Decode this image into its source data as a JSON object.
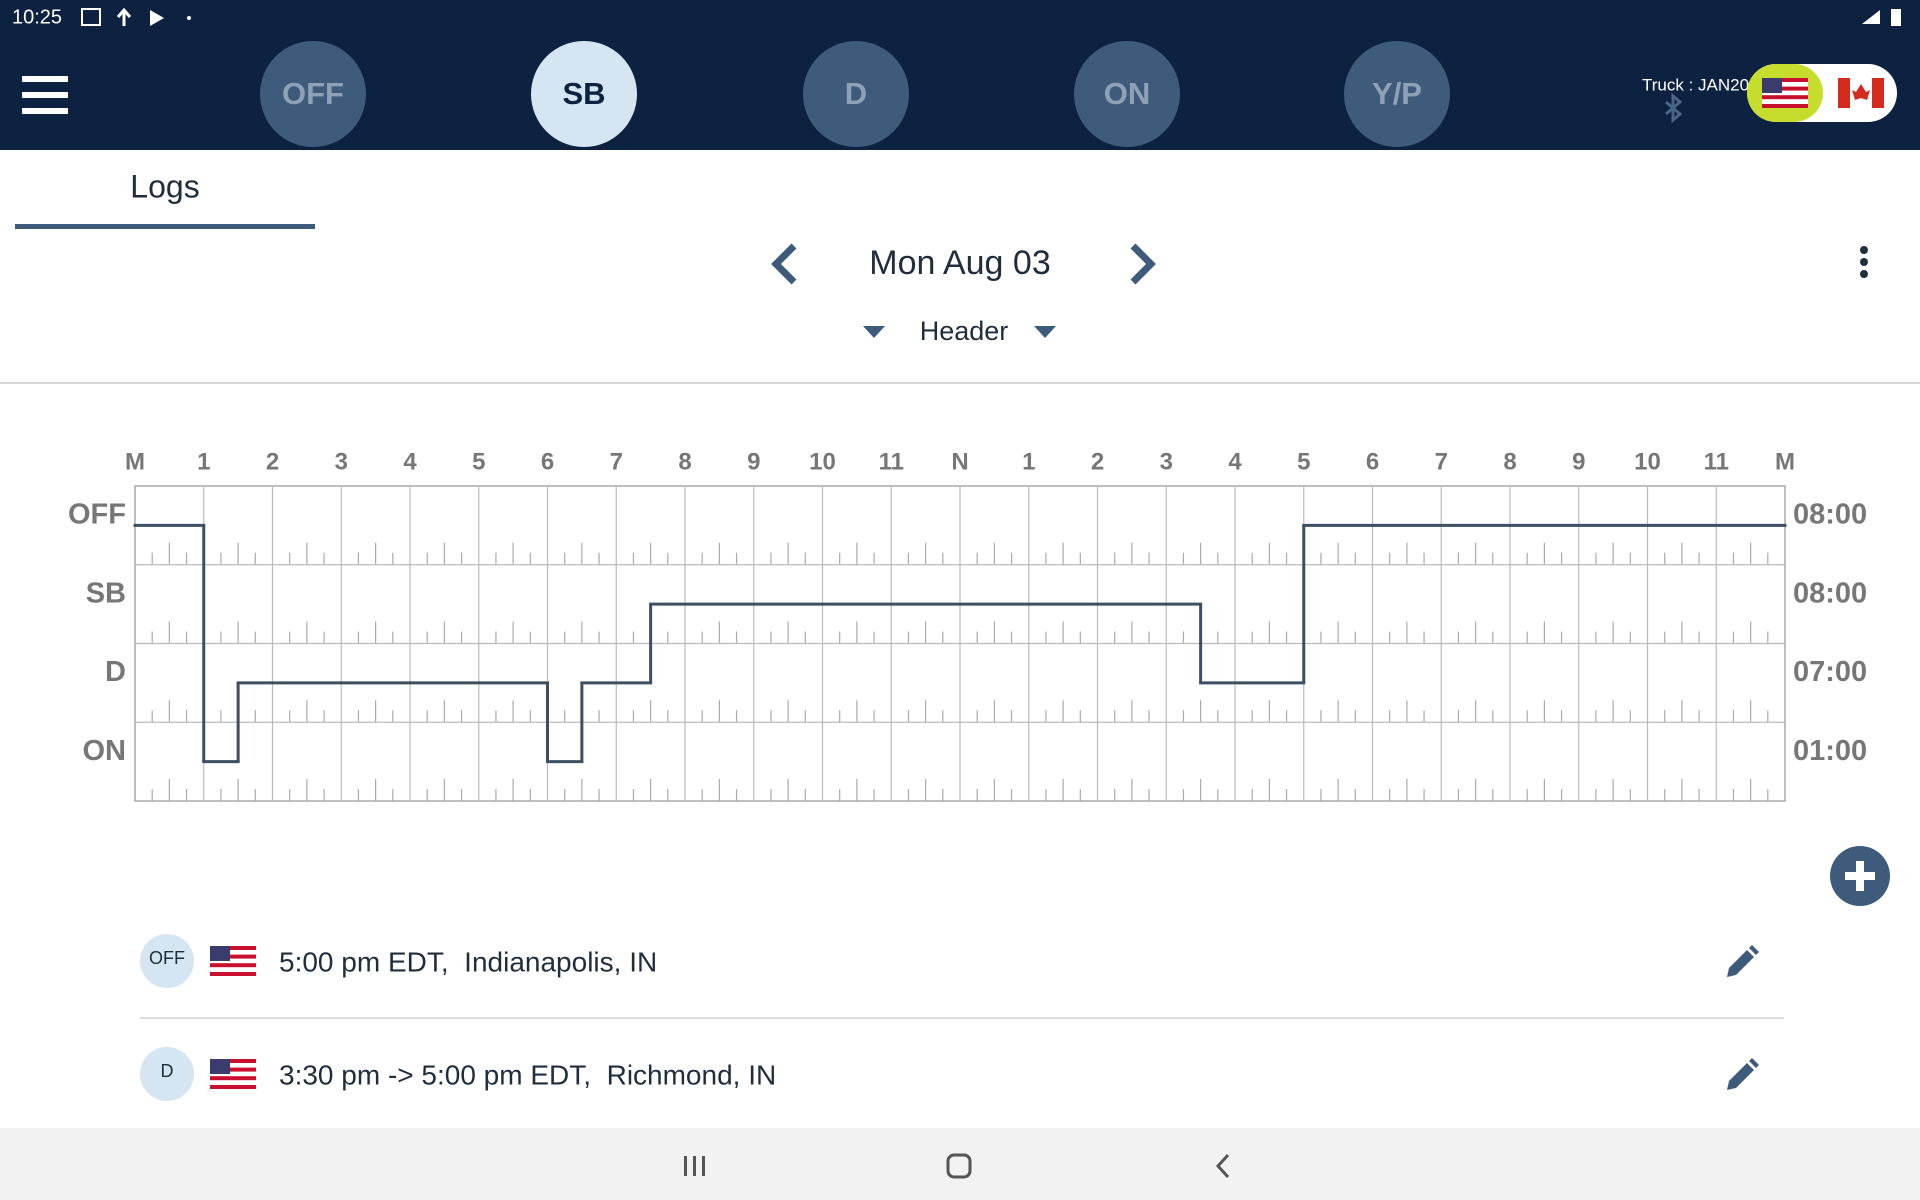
{
  "status_bar": {
    "time": "10:25"
  },
  "duty_buttons": {
    "labels": [
      "OFF",
      "SB",
      "D",
      "ON",
      "Y/P"
    ],
    "active": 1
  },
  "truck": "Truck : JAN20",
  "tab": "Logs",
  "date": "Mon Aug 03",
  "section": "Header",
  "log_graph": {
    "hour_labels": [
      "M",
      "1",
      "2",
      "3",
      "4",
      "5",
      "6",
      "7",
      "8",
      "9",
      "10",
      "11",
      "N",
      "1",
      "2",
      "3",
      "4",
      "5",
      "6",
      "7",
      "8",
      "9",
      "10",
      "11",
      "M"
    ],
    "statuses": [
      "OFF",
      "SB",
      "D",
      "ON"
    ],
    "totals": [
      "08:00",
      "08:00",
      "07:00",
      "01:00"
    ],
    "segments": [
      {
        "status": "OFF",
        "start": 0,
        "end": 1
      },
      {
        "status": "ON",
        "start": 1,
        "end": 1.5
      },
      {
        "status": "D",
        "start": 1.5,
        "end": 6
      },
      {
        "status": "ON",
        "start": 6,
        "end": 6.5
      },
      {
        "status": "D",
        "start": 6.5,
        "end": 7.5
      },
      {
        "status": "SB",
        "start": 7.5,
        "end": 15.5
      },
      {
        "status": "D",
        "start": 15.5,
        "end": 17
      },
      {
        "status": "OFF",
        "start": 17,
        "end": 24
      }
    ]
  },
  "entries": [
    {
      "status": "OFF",
      "text": "5:00 pm EDT,  Indianapolis, IN"
    },
    {
      "status": "D",
      "text": "3:30 pm -> 5:00 pm EDT,  Richmond, IN"
    }
  ]
}
